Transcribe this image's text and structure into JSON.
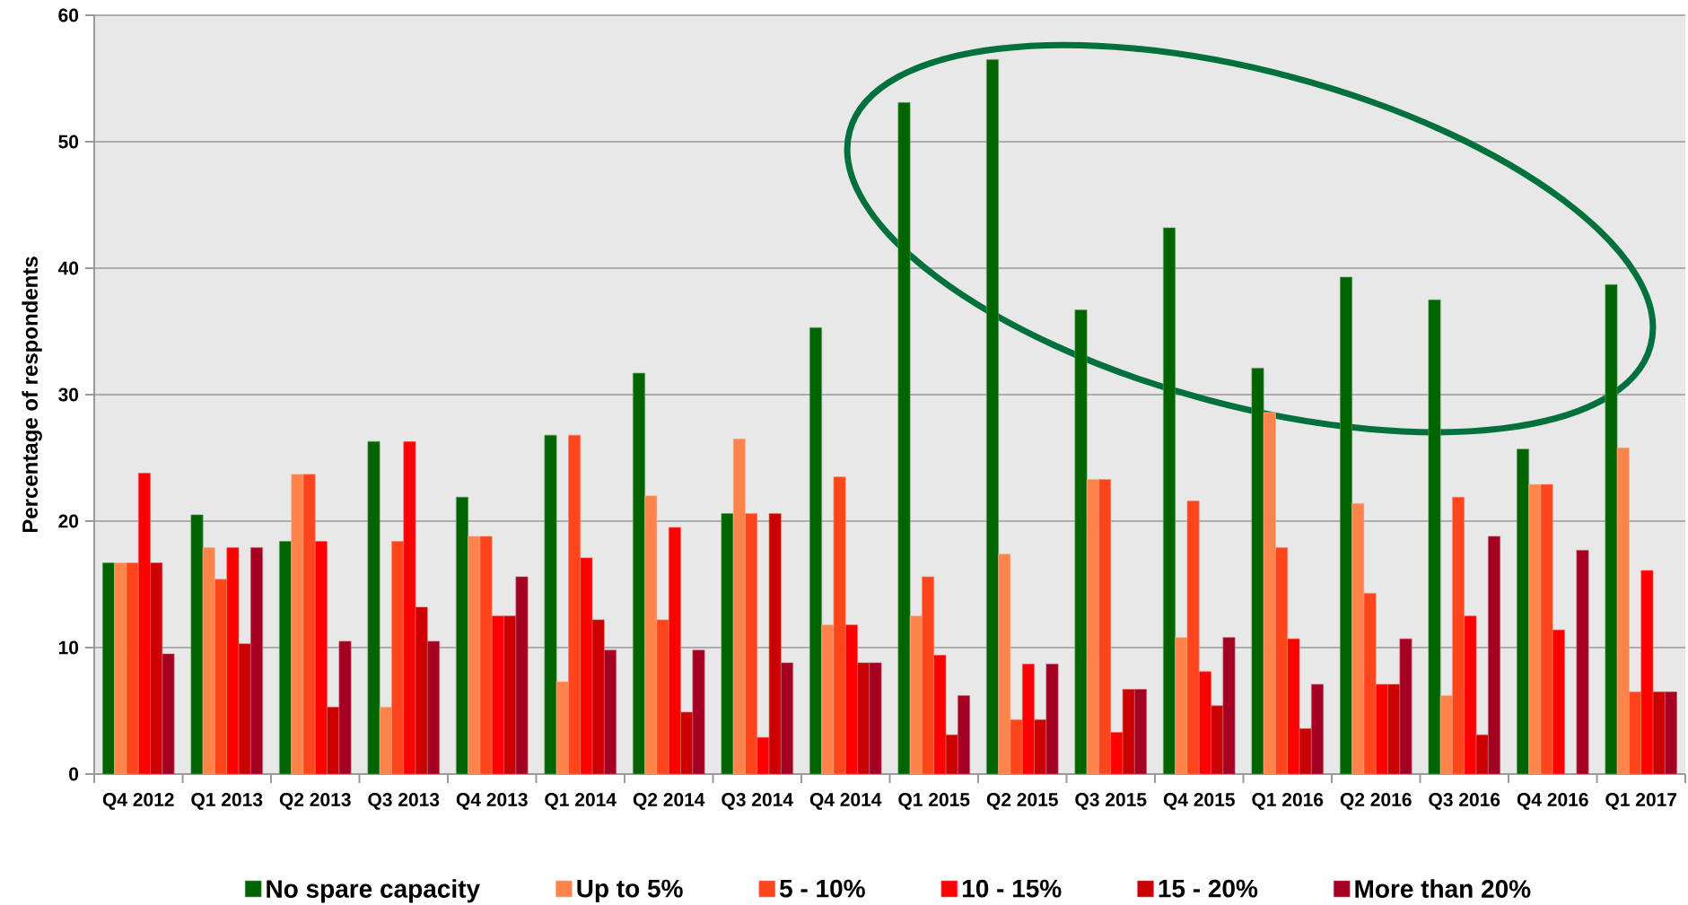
{
  "chart_data": {
    "type": "bar",
    "ylabel": "Percentage of respondents",
    "categories": [
      "Q4 2012",
      "Q1 2013",
      "Q2 2013",
      "Q3 2013",
      "Q4 2013",
      "Q1 2014",
      "Q2 2014",
      "Q3 2014",
      "Q4 2014",
      "Q1 2015",
      "Q2 2015",
      "Q3 2015",
      "Q4 2015",
      "Q1 2016",
      "Q2 2016",
      "Q3 2016",
      "Q4 2016",
      "Q1 2017"
    ],
    "series": [
      {
        "name": "No spare capacity",
        "color": "#006400",
        "values": [
          16.7,
          20.5,
          18.4,
          26.3,
          21.9,
          26.8,
          31.7,
          20.6,
          35.3,
          53.1,
          56.5,
          36.7,
          43.2,
          32.1,
          39.3,
          37.5,
          25.7,
          38.7
        ]
      },
      {
        "name": "Up to 5%",
        "color": "#ff844c",
        "values": [
          16.7,
          17.9,
          23.7,
          5.3,
          18.8,
          7.3,
          22.0,
          26.5,
          11.8,
          12.5,
          17.4,
          23.3,
          10.8,
          28.6,
          21.4,
          6.2,
          22.9,
          25.8
        ]
      },
      {
        "name": "5 - 10%",
        "color": "#ff451c",
        "values": [
          16.7,
          15.4,
          23.7,
          18.4,
          18.8,
          26.8,
          12.2,
          20.6,
          23.5,
          15.6,
          4.3,
          23.3,
          21.6,
          17.9,
          14.3,
          21.9,
          22.9,
          6.5
        ]
      },
      {
        "name": "10 - 15%",
        "color": "#ff0000",
        "values": [
          23.8,
          17.9,
          18.4,
          26.3,
          12.5,
          17.1,
          19.5,
          2.9,
          11.8,
          9.4,
          8.7,
          3.3,
          8.1,
          10.7,
          7.1,
          12.5,
          11.4,
          16.1
        ]
      },
      {
        "name": "15 - 20%",
        "color": "#cc0000",
        "values": [
          16.7,
          10.3,
          5.3,
          13.2,
          12.5,
          12.2,
          4.9,
          20.6,
          8.8,
          3.1,
          4.3,
          6.7,
          5.4,
          3.6,
          7.1,
          3.1,
          null,
          6.5
        ]
      },
      {
        "name": "More than 20%",
        "color": "#a50021",
        "values": [
          9.5,
          17.9,
          10.5,
          10.5,
          15.6,
          9.8,
          9.8,
          8.8,
          8.8,
          6.2,
          8.7,
          6.7,
          10.8,
          7.1,
          10.7,
          18.8,
          17.7,
          6.5
        ]
      }
    ],
    "ylim": [
      0,
      60
    ],
    "yticks": [
      0,
      10,
      20,
      30,
      40,
      50,
      60
    ],
    "grid": "y",
    "legend": "bottom"
  }
}
